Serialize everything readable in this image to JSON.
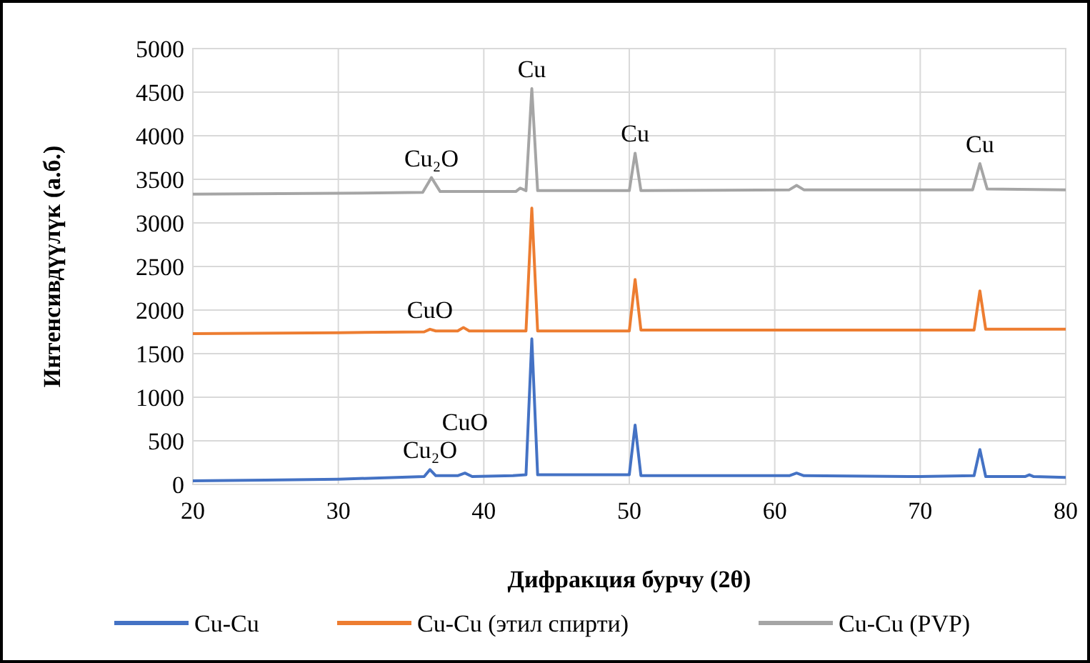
{
  "chart_data": {
    "type": "line",
    "xlabel": "Дифракция бурчу (2θ)",
    "ylabel": "Интенсивдүүлүк (а.б.)",
    "xlim": [
      20,
      80
    ],
    "xticks": [
      20,
      30,
      40,
      50,
      60,
      70,
      80
    ],
    "ylim": [
      0,
      5000
    ],
    "yticks": [
      0,
      500,
      1000,
      1500,
      2000,
      2500,
      3000,
      3500,
      4000,
      4500,
      5000
    ],
    "grid": true,
    "legend": "bottom",
    "line_style": "solid",
    "series": [
      {
        "name": "Cu-Cu",
        "color": "#4472c4",
        "x": [
          20,
          25,
          30,
          34,
          35.9,
          36.3,
          36.7,
          38.2,
          38.7,
          39.2,
          42,
          42.9,
          43.3,
          43.7,
          50,
          50.4,
          50.8,
          55,
          61,
          61.5,
          62,
          70,
          73.7,
          74.1,
          74.5,
          77.2,
          77.5,
          77.8,
          80
        ],
        "values": [
          40,
          50,
          60,
          80,
          90,
          170,
          100,
          100,
          130,
          90,
          100,
          110,
          1670,
          110,
          110,
          680,
          100,
          100,
          100,
          130,
          100,
          90,
          100,
          400,
          90,
          90,
          110,
          90,
          80
        ]
      },
      {
        "name": "Cu-Cu (этил спирти)",
        "color": "#ed7d31",
        "x": [
          20,
          30,
          35.9,
          36.3,
          36.7,
          38.2,
          38.6,
          39,
          42.9,
          43.3,
          43.7,
          50,
          50.4,
          50.8,
          60,
          70,
          73.7,
          74.1,
          74.5,
          80
        ],
        "values": [
          1730,
          1740,
          1750,
          1780,
          1760,
          1760,
          1800,
          1760,
          1760,
          3170,
          1760,
          1760,
          2350,
          1770,
          1770,
          1770,
          1770,
          2220,
          1780,
          1780
        ]
      },
      {
        "name": "Cu-Cu (PVP)",
        "color": "#a5a5a5",
        "x": [
          20,
          30,
          35.8,
          36.4,
          37,
          42.2,
          42.5,
          42.9,
          43.3,
          43.7,
          50,
          50.4,
          50.8,
          61,
          61.5,
          62,
          73.6,
          74.1,
          74.6,
          80
        ],
        "values": [
          3330,
          3340,
          3350,
          3520,
          3360,
          3360,
          3400,
          3370,
          4540,
          3370,
          3370,
          3800,
          3370,
          3380,
          3430,
          3380,
          3380,
          3680,
          3390,
          3380
        ]
      }
    ],
    "annotations": [
      {
        "text": "Cu₂O",
        "x": 36.4,
        "y": 3520
      },
      {
        "text": "Cu",
        "x": 43.3,
        "y": 4540
      },
      {
        "text": "Cu",
        "x": 50.4,
        "y": 3800
      },
      {
        "text": "Cu",
        "x": 74.1,
        "y": 3680
      },
      {
        "text": "CuO",
        "x": 36.3,
        "y": 1780
      },
      {
        "text": "Cu₂O",
        "x": 36.3,
        "y": 170
      },
      {
        "text": "CuO",
        "x": 38.7,
        "y": 130
      }
    ]
  }
}
